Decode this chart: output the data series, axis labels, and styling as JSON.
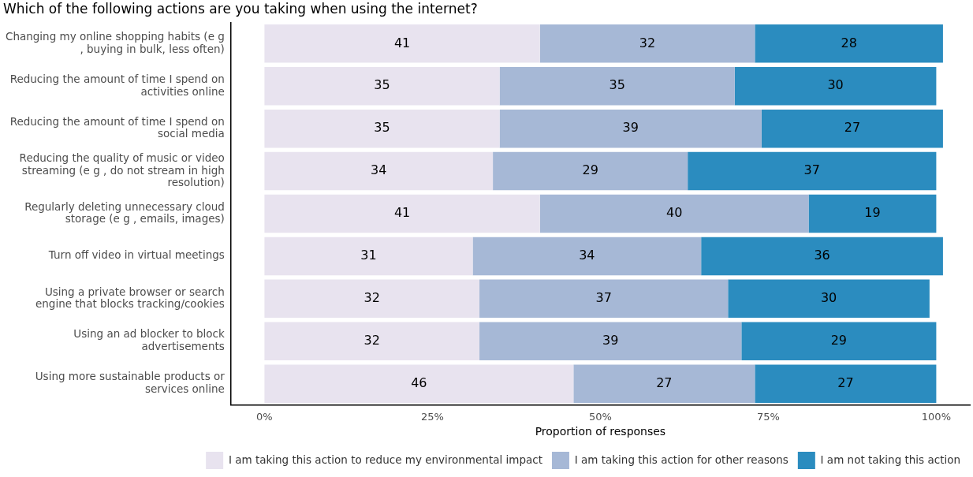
{
  "chart_data": {
    "type": "bar",
    "orientation": "horizontal",
    "stacked": true,
    "title": "Which of the following actions are you taking when using the internet?",
    "xlabel": "Proportion of responses",
    "categories": [
      "Changing my online shopping habits (e g , buying in bulk, less often)",
      "Reducing the amount of time I spend on activities online",
      "Reducing the amount of time I spend on social media",
      "Reducing the quality of music or video streaming (e g , do not stream in high resolution)",
      "Regularly deleting unnecessary cloud storage (e g , emails, images)",
      "Turn off video in virtual meetings",
      "Using a private browser or search engine that blocks tracking/cookies",
      "Using an ad blocker to block advertisements",
      "Using more sustainable products or services online"
    ],
    "series": [
      {
        "name": "I am taking this action to reduce my environmental impact",
        "color": "#e8e3ef",
        "values": [
          41,
          35,
          35,
          34,
          41,
          31,
          32,
          32,
          46
        ]
      },
      {
        "name": "I am taking this action for other reasons",
        "color": "#a6b8d6",
        "values": [
          32,
          35,
          39,
          29,
          40,
          34,
          37,
          39,
          27
        ]
      },
      {
        "name": "I am not taking this action",
        "color": "#2b8cbf",
        "values": [
          28,
          30,
          27,
          37,
          19,
          36,
          30,
          29,
          27
        ]
      }
    ],
    "xlim": [
      -5,
      105
    ],
    "xticks": [
      {
        "value": 0,
        "label": "0%"
      },
      {
        "value": 25,
        "label": "25%"
      },
      {
        "value": 50,
        "label": "50%"
      },
      {
        "value": 75,
        "label": "75%"
      },
      {
        "value": 100,
        "label": "100%"
      }
    ],
    "data_labels": true,
    "grid": false,
    "legend": "bottom"
  }
}
